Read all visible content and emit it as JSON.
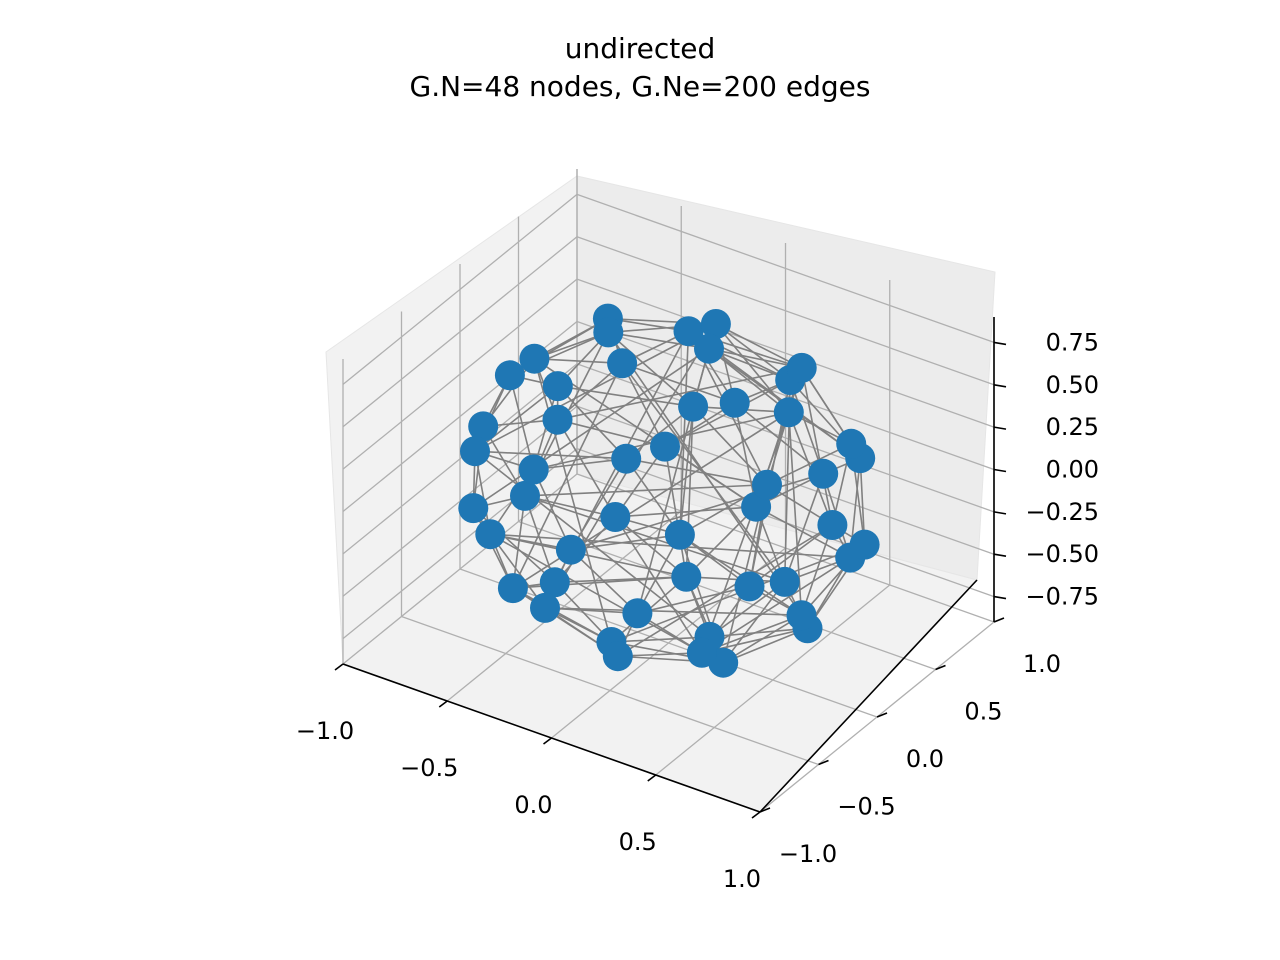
{
  "title_line1": "undirected",
  "title_line2": "G.N=48 nodes, G.Ne=200 edges",
  "chart_data": {
    "type": "scatter",
    "projection": "3d",
    "graph": {
      "directed": false,
      "num_nodes": 48,
      "num_edges": 200
    },
    "axes": {
      "x": {
        "ticks": [
          -1.0,
          -0.5,
          0.0,
          0.5,
          1.0
        ],
        "tick_labels": [
          "−1.0",
          "−0.5",
          "0.0",
          "0.5",
          "1.0"
        ],
        "lim": [
          -1.0,
          1.0
        ]
      },
      "y": {
        "ticks": [
          -1.0,
          -0.5,
          0.0,
          0.5,
          1.0
        ],
        "tick_labels": [
          "−1.0",
          "−0.5",
          "0.0",
          "0.5",
          "1.0"
        ],
        "lim": [
          -1.0,
          1.0
        ]
      },
      "z": {
        "ticks": [
          -0.75,
          -0.5,
          -0.25,
          0.0,
          0.25,
          0.5,
          0.75
        ],
        "tick_labels": [
          "−0.75",
          "−0.50",
          "−0.25",
          "0.00",
          "0.25",
          "0.50",
          "0.75"
        ],
        "lim": [
          -0.9,
          0.9
        ]
      }
    },
    "grid": true,
    "node_color": "#1f77b4",
    "edge_color": "#808080",
    "pane_color": "#f2f2f2"
  }
}
